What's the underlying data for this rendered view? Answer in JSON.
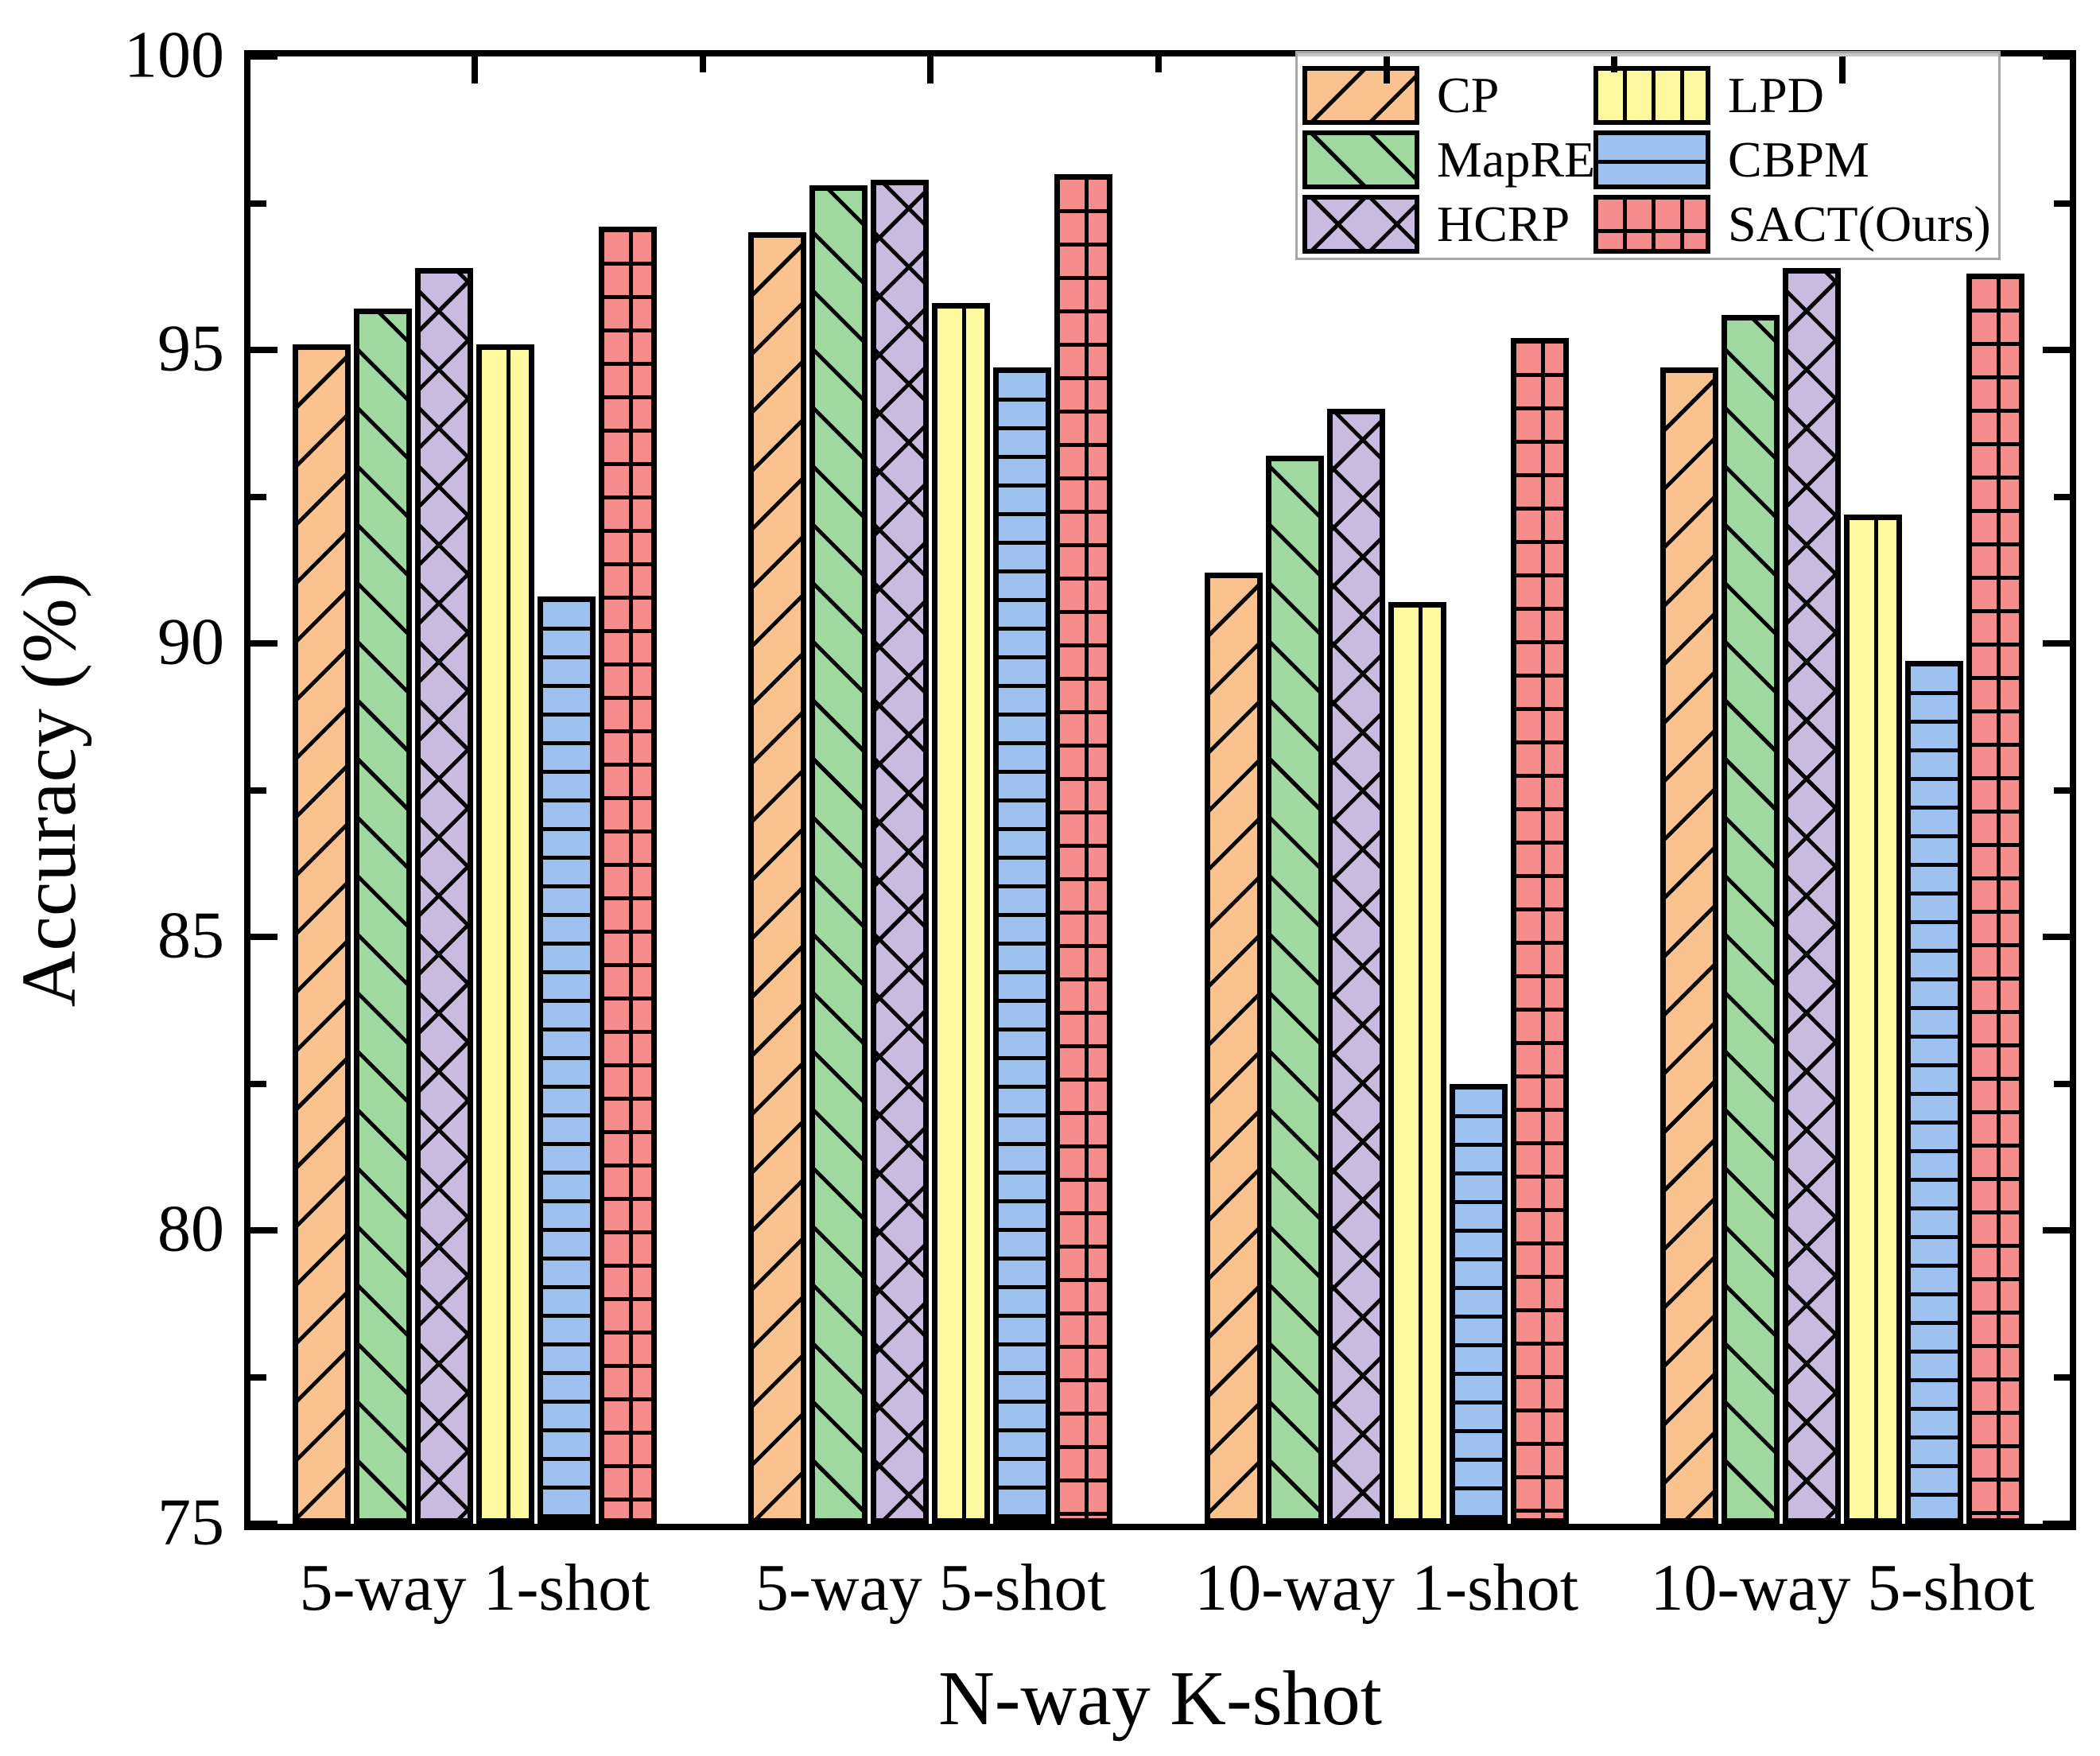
{
  "chart_data": {
    "type": "bar",
    "title": "",
    "xlabel": "N-way K-shot",
    "ylabel": "Accuracy (%)",
    "ylim": [
      75,
      100
    ],
    "y_major_ticks": [
      75,
      80,
      85,
      90,
      95,
      100
    ],
    "y_minor_ticks": [
      77.5,
      82.5,
      87.5,
      92.5,
      97.5
    ],
    "grid": false,
    "categories": [
      "5-way 1-shot",
      "5-way 5-shot",
      "10-way 1-shot",
      "10-way 5-shot"
    ],
    "series": [
      {
        "name": "CP",
        "color": "#F9C28E",
        "hatch": "diag-up",
        "values": [
          95.1,
          97.0,
          91.2,
          94.7
        ]
      },
      {
        "name": "MapRE",
        "color": "#9FD9A0",
        "hatch": "diag-down",
        "values": [
          95.7,
          97.8,
          93.2,
          95.6
        ]
      },
      {
        "name": "HCRP",
        "color": "#C9BADF",
        "hatch": "cross",
        "values": [
          96.4,
          97.9,
          94.0,
          96.4
        ]
      },
      {
        "name": "LPD",
        "color": "#FCF9A0",
        "hatch": "vertical",
        "values": [
          95.1,
          95.8,
          90.7,
          92.2
        ]
      },
      {
        "name": "CBPM",
        "color": "#9FC1F0",
        "hatch": "horizontal",
        "values": [
          90.8,
          94.7,
          82.5,
          89.7
        ]
      },
      {
        "name": "SACT(Ours)",
        "color": "#F68D8D",
        "hatch": "grid",
        "values": [
          97.1,
          98.0,
          95.2,
          96.3
        ]
      }
    ],
    "legend": {
      "position": "top-right",
      "columns": 2,
      "entries": [
        "CP",
        "MapRE",
        "HCRP",
        "LPD",
        "CBPM",
        "SACT(Ours)"
      ]
    }
  },
  "colors": {
    "axis": "#000000",
    "legend_border": "#a6a6a6",
    "background": "#ffffff"
  }
}
